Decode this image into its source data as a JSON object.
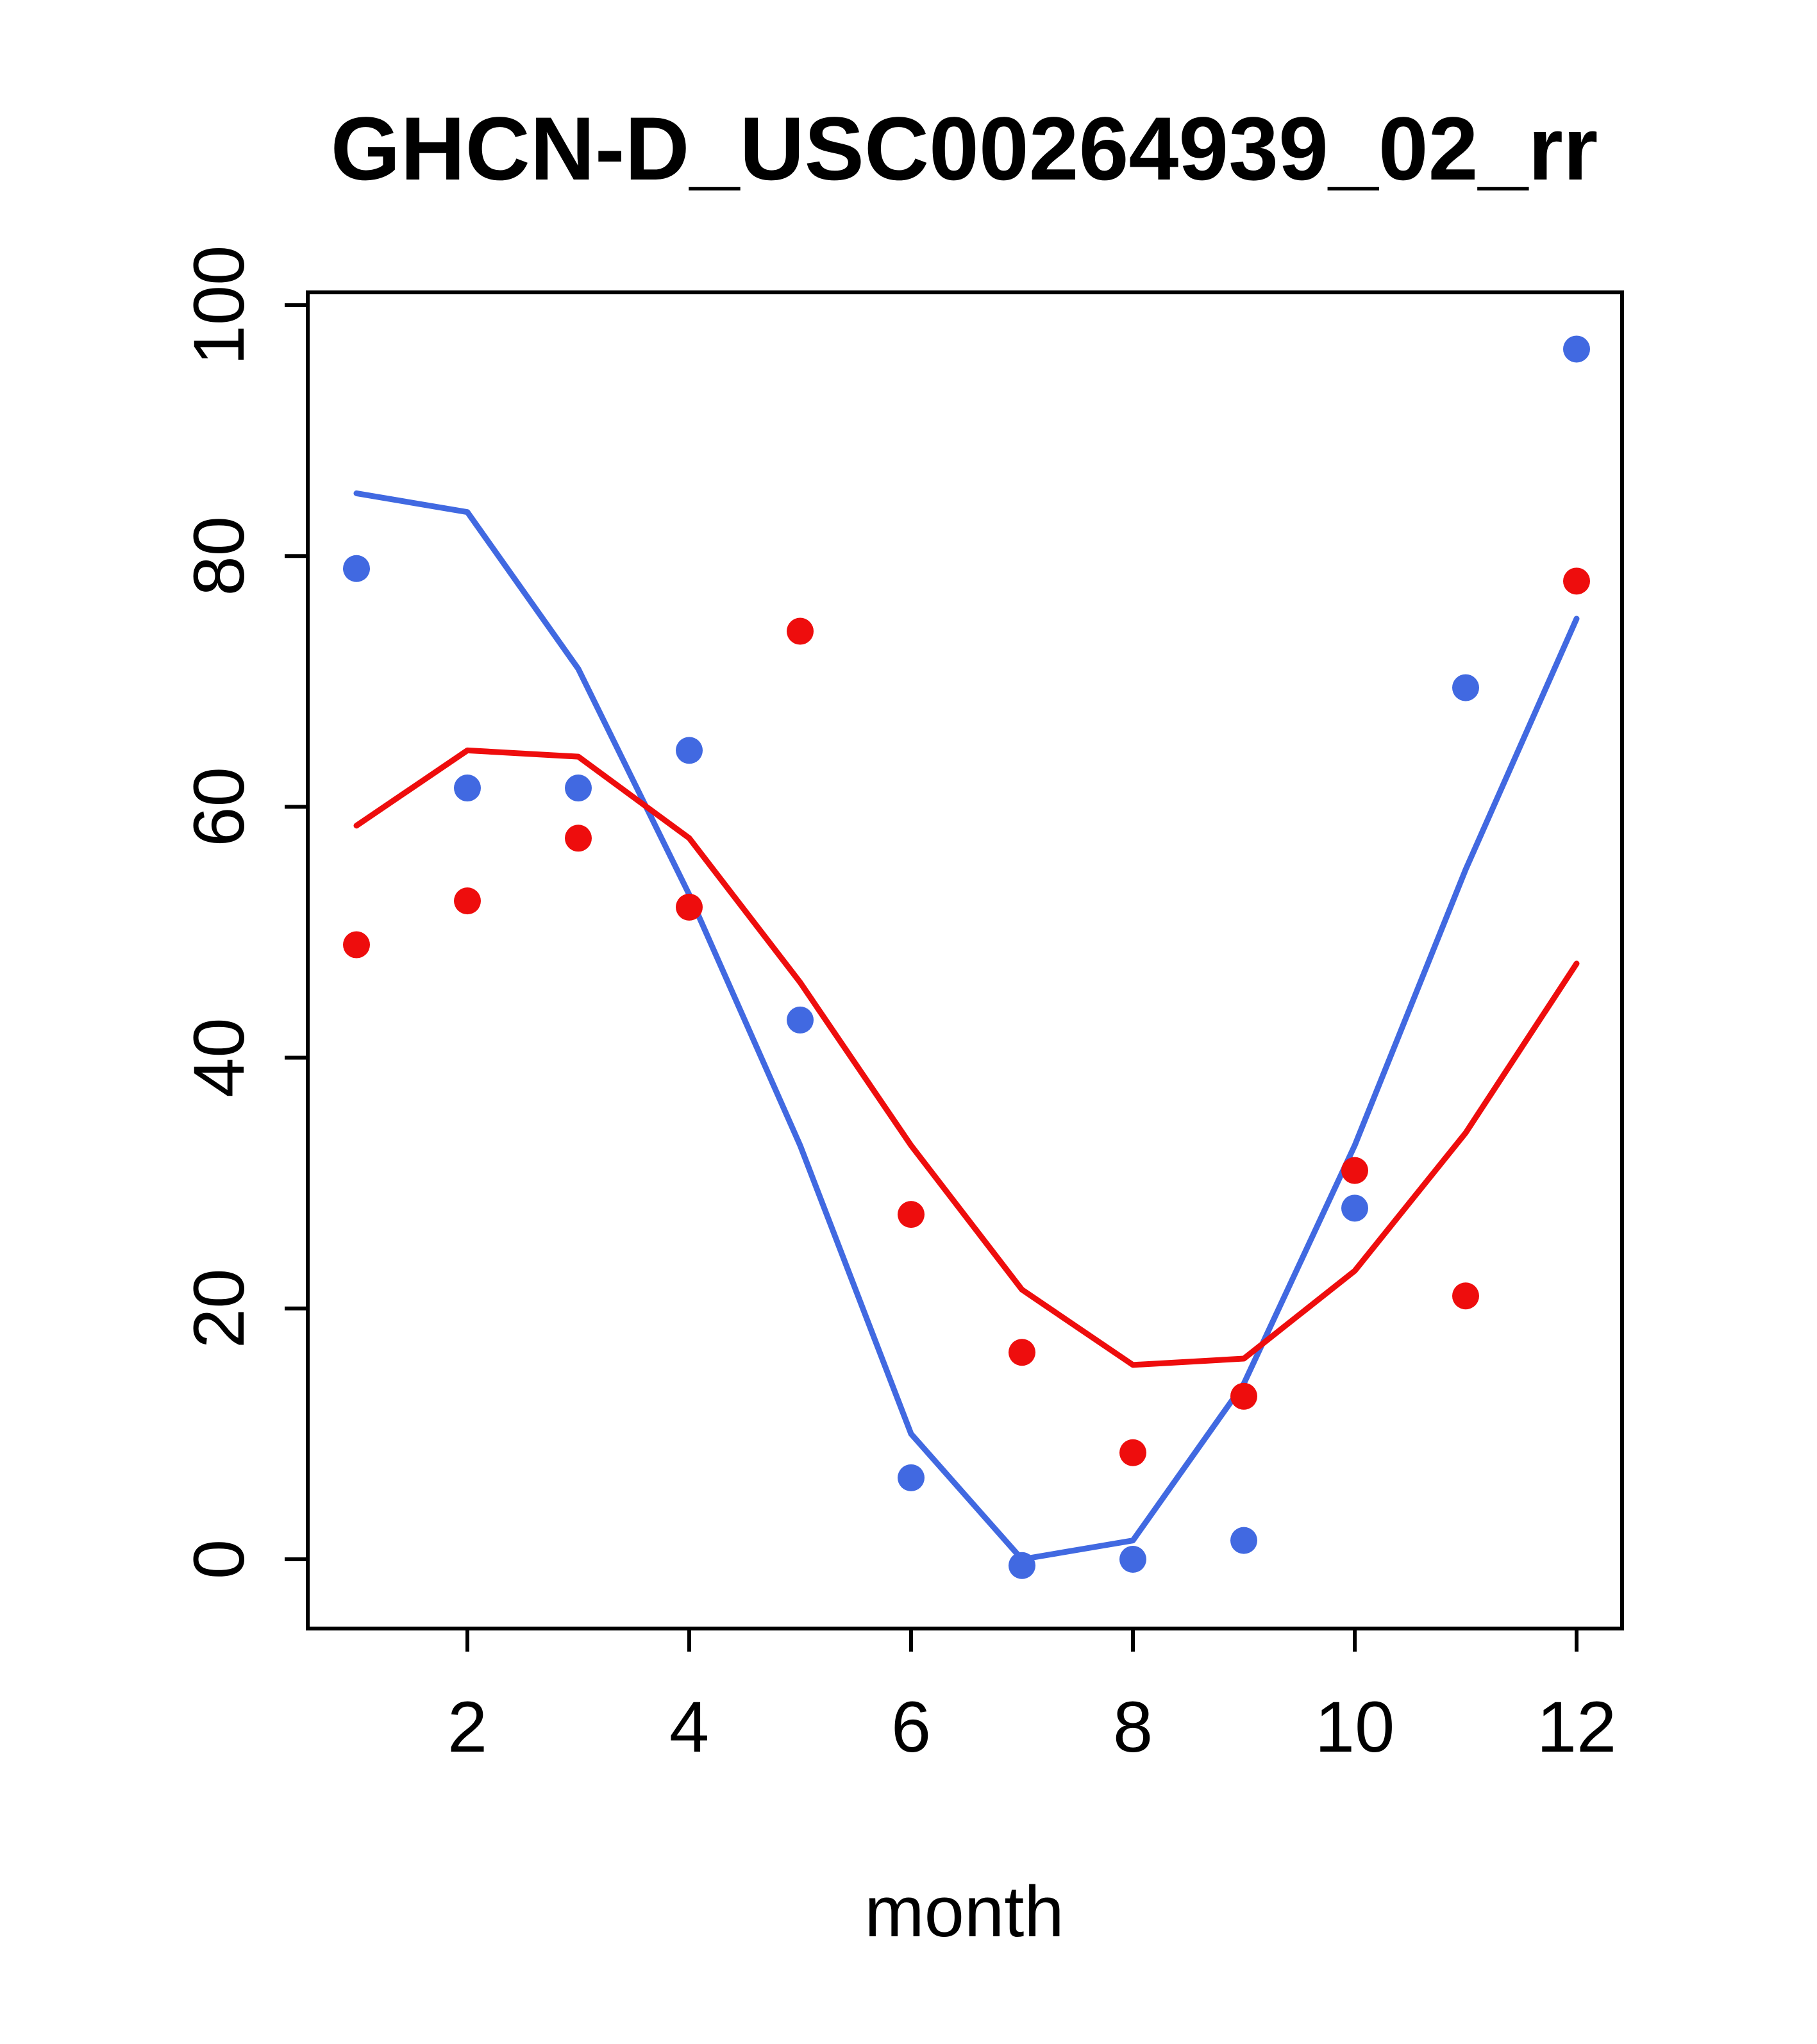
{
  "chart_data": {
    "type": "line",
    "title": "GHCN-D_USC00264939_02_rr",
    "xlabel": "month",
    "ylabel": "",
    "x": [
      1,
      2,
      3,
      4,
      5,
      6,
      7,
      8,
      9,
      10,
      11,
      12
    ],
    "xticks": [
      2,
      4,
      6,
      8,
      10,
      12
    ],
    "yticks": [
      0,
      20,
      40,
      60,
      80,
      100
    ],
    "xlim": [
      0.56,
      12.44
    ],
    "ylim": [
      -5.5,
      101
    ],
    "grid": false,
    "legend_position": "none",
    "colors": {
      "blue": "#4169E1",
      "red": "#EE0D0D",
      "axis": "#000000",
      "background": "#FFFFFF"
    },
    "series": [
      {
        "name": "blue-line",
        "type": "line",
        "color": "#4169E1",
        "values": [
          85,
          83.5,
          71,
          53,
          33,
          10,
          0,
          1.5,
          14,
          33,
          55,
          75
        ]
      },
      {
        "name": "red-line",
        "type": "line",
        "color": "#EE0D0D",
        "values": [
          58.5,
          64.5,
          64,
          57.5,
          46,
          33,
          21.5,
          15.5,
          16,
          23,
          34,
          47.5
        ]
      },
      {
        "name": "blue-points",
        "type": "scatter",
        "color": "#4169E1",
        "values": [
          79,
          61.5,
          61.5,
          64.5,
          43,
          6.5,
          -0.5,
          0,
          1.5,
          28,
          69.5,
          96.5
        ]
      },
      {
        "name": "red-points",
        "type": "scatter",
        "color": "#EE0D0D",
        "values": [
          49,
          52.5,
          57.5,
          52,
          74,
          27.5,
          16.5,
          8.5,
          13,
          31,
          21,
          78
        ]
      }
    ]
  }
}
